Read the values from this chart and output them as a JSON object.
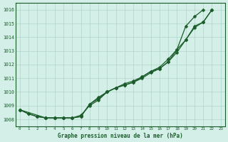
{
  "title": "Graphe pression niveau de la mer (hPa)",
  "bg_color": "#d4efe8",
  "grid_color": "#b0d4c8",
  "line_color": "#1a5c2a",
  "x_labels": [
    "0",
    "1",
    "2",
    "3",
    "4",
    "5",
    "6",
    "7",
    "8",
    "9",
    "10",
    "11",
    "12",
    "13",
    "14",
    "15",
    "16",
    "17",
    "18",
    "19",
    "20",
    "21",
    "22",
    "23"
  ],
  "ylim": [
    1007.5,
    1016.5
  ],
  "yticks": [
    1008,
    1009,
    1010,
    1011,
    1012,
    1013,
    1014,
    1015,
    1016
  ],
  "line1_x": [
    0,
    1,
    2,
    3,
    4,
    5,
    6,
    7,
    8,
    9,
    10,
    11,
    12,
    13,
    14,
    15,
    16,
    17,
    18,
    19,
    20,
    21,
    22
  ],
  "line1_y": [
    1008.7,
    1008.4,
    1008.2,
    1008.1,
    1008.1,
    1008.1,
    1008.1,
    1008.2,
    1009.1,
    1009.5,
    1010.0,
    1010.3,
    1010.5,
    1010.7,
    1011.1,
    1011.5,
    1011.7,
    1012.2,
    1013.1,
    1013.8,
    1014.7,
    1015.1,
    1016.0
  ],
  "line2_x": [
    0,
    1,
    2,
    3,
    4,
    5,
    6,
    7,
    8,
    9,
    10,
    11,
    12,
    13,
    14,
    15,
    16,
    17,
    18,
    19,
    20,
    21
  ],
  "line2_y": [
    1008.7,
    1008.4,
    1008.2,
    1008.1,
    1008.1,
    1008.1,
    1008.1,
    1008.2,
    1009.1,
    1009.6,
    1010.0,
    1010.3,
    1010.6,
    1010.8,
    1011.1,
    1011.5,
    1011.8,
    1012.4,
    1013.1,
    1014.8,
    1015.5,
    1016.0
  ],
  "line3_x": [
    0,
    3,
    4,
    5,
    6,
    7,
    8,
    9,
    10,
    11,
    12,
    13,
    14,
    15,
    16,
    17,
    18,
    19,
    20,
    21,
    22
  ],
  "line3_y": [
    1008.7,
    1008.1,
    1008.1,
    1008.1,
    1008.1,
    1008.3,
    1009.0,
    1009.4,
    1010.0,
    1010.3,
    1010.5,
    1010.7,
    1011.0,
    1011.4,
    1011.7,
    1012.2,
    1012.9,
    1013.8,
    1014.8,
    1015.1,
    1016.0
  ]
}
